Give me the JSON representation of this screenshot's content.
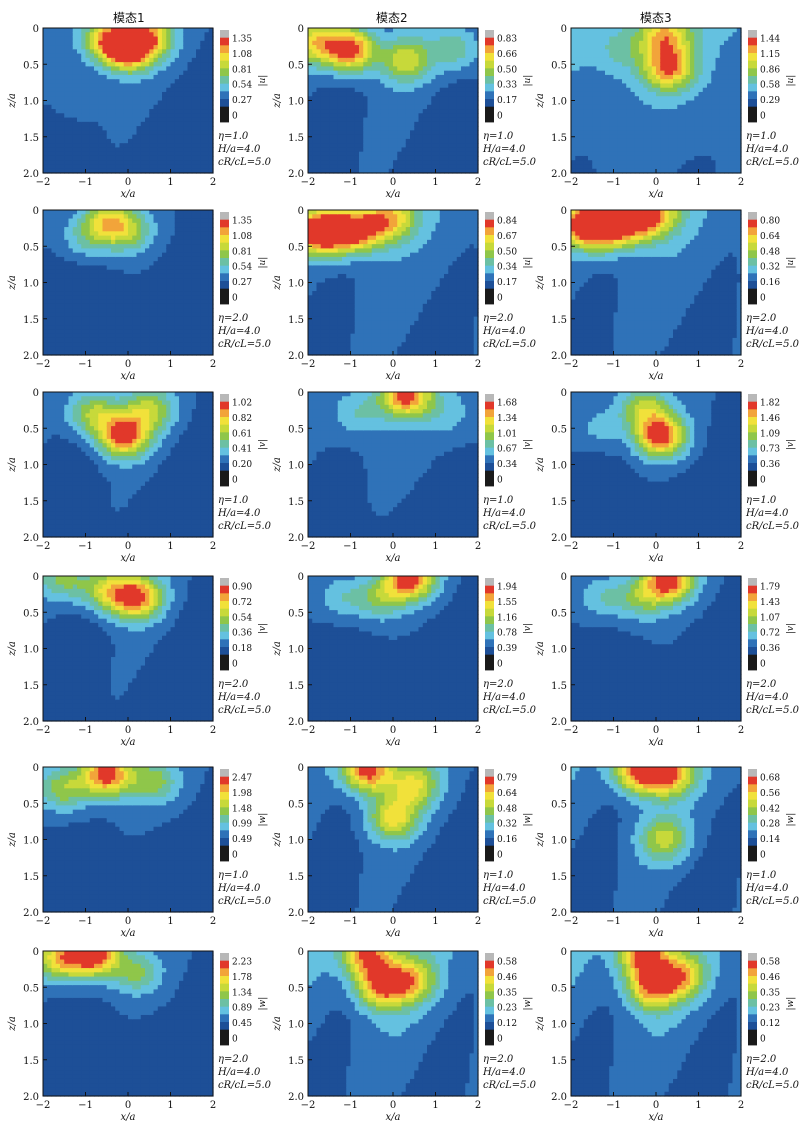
{
  "column_titles": [
    "模态1",
    "模态2",
    "模态3"
  ],
  "colors": {
    "levels": [
      "#1a1a1a",
      "#1d4f97",
      "#2f72b8",
      "#64c1e0",
      "#6cc0a4",
      "#8fc64a",
      "#c7d93a",
      "#f1e13a",
      "#f2a43a",
      "#e1382a",
      "#b8b8b8"
    ],
    "line": "#111111",
    "frame": "#111111"
  },
  "chart_data": [
    {
      "type": "contour",
      "panel": "row1-col1",
      "column": "模态1",
      "xlabel": "x/a",
      "ylabel": "z/a",
      "xlim": [
        -2,
        2
      ],
      "ylim": [
        2.0,
        0
      ],
      "x_ticks": [
        "−2",
        "−1",
        "0",
        "1",
        "2"
      ],
      "y_ticks": [
        "0",
        "0.5",
        "1.0",
        "1.5",
        "2.0"
      ],
      "colorbar_ticks": [
        "1.35",
        "1.08",
        "0.81",
        "0.54",
        "0.27",
        "0"
      ],
      "colorbar_label": "|u|",
      "params": [
        "η=1.0",
        "H/a=4.0",
        "cR/cL=5.0"
      ],
      "peaks": [
        {
          "x": 0.0,
          "z": 0.3,
          "v": 1.25
        },
        {
          "x": -0.5,
          "z": 0.15,
          "v": 1.0
        },
        {
          "x": 0.5,
          "z": 0.12,
          "v": 0.95
        },
        {
          "x": -1.2,
          "z": 1.0,
          "v": 0.3
        }
      ],
      "base": 0.18
    },
    {
      "type": "contour",
      "panel": "row1-col2",
      "column": "模态2",
      "xlabel": "x/a",
      "ylabel": "z/a",
      "xlim": [
        -2,
        2
      ],
      "ylim": [
        2.0,
        0
      ],
      "x_ticks": [
        "−2",
        "−1",
        "0",
        "1",
        "2"
      ],
      "y_ticks": [
        "0",
        "0.5",
        "1.0",
        "1.5",
        "2.0"
      ],
      "colorbar_ticks": [
        "0.83",
        "0.66",
        "0.50",
        "0.33",
        "0.17",
        "0"
      ],
      "colorbar_label": "|u|",
      "params": [
        "η=1.0",
        "H/a=4.0",
        "cR/cL=5.0"
      ],
      "peaks": [
        {
          "x": -1.0,
          "z": 0.3,
          "v": 0.82
        },
        {
          "x": -1.8,
          "z": 0.2,
          "v": 0.55
        },
        {
          "x": 0.3,
          "z": 0.45,
          "v": 0.5
        },
        {
          "x": 1.5,
          "z": 0.3,
          "v": 0.35
        }
      ],
      "base": 0.12
    },
    {
      "type": "contour",
      "panel": "row1-col3",
      "column": "模态3",
      "xlabel": "x/a",
      "ylabel": "z/a",
      "xlim": [
        -2,
        2
      ],
      "ylim": [
        2.0,
        0
      ],
      "x_ticks": [
        "−2",
        "−1",
        "0",
        "1",
        "2"
      ],
      "y_ticks": [
        "0",
        "0.5",
        "1.0",
        "1.5",
        "2.0"
      ],
      "colorbar_ticks": [
        "1.44",
        "1.15",
        "0.86",
        "0.58",
        "0.29",
        "0"
      ],
      "colorbar_label": "|u|",
      "params": [
        "η=1.0",
        "H/a=4.0",
        "cR/cL=5.0"
      ],
      "peaks": [
        {
          "x": 0.3,
          "z": 0.55,
          "v": 1.3
        },
        {
          "x": 0.2,
          "z": 0.1,
          "v": 1.1
        },
        {
          "x": -0.8,
          "z": 0.3,
          "v": 0.6
        },
        {
          "x": -1.5,
          "z": 1.2,
          "v": 0.45
        }
      ],
      "base": 0.35
    },
    {
      "type": "contour",
      "panel": "row2-col1",
      "column": "模态1",
      "xlabel": "x/a",
      "ylabel": "z/a",
      "xlim": [
        -2,
        2
      ],
      "ylim": [
        2.0,
        0
      ],
      "x_ticks": [
        "−2",
        "−1",
        "0",
        "1",
        "2"
      ],
      "y_ticks": [
        "0",
        "0.5",
        "1.0",
        "1.5",
        "2.0"
      ],
      "colorbar_ticks": [
        "1.35",
        "1.08",
        "0.81",
        "0.54",
        "0.27",
        "0"
      ],
      "colorbar_label": "|u|",
      "params": [
        "η=2.0",
        "H/a=4.0",
        "cR/cL=5.0"
      ],
      "peaks": [
        {
          "x": -0.5,
          "z": 0.15,
          "v": 0.85
        },
        {
          "x": 0.0,
          "z": 0.3,
          "v": 0.6
        },
        {
          "x": -1.0,
          "z": 0.4,
          "v": 0.45
        }
      ],
      "base": 0.12
    },
    {
      "type": "contour",
      "panel": "row2-col2",
      "column": "模态2",
      "xlabel": "x/a",
      "ylabel": "z/a",
      "xlim": [
        -2,
        2
      ],
      "ylim": [
        2.0,
        0
      ],
      "x_ticks": [
        "−2",
        "−1",
        "0",
        "1",
        "2"
      ],
      "y_ticks": [
        "0",
        "0.5",
        "1.0",
        "1.5",
        "2.0"
      ],
      "colorbar_ticks": [
        "0.84",
        "0.67",
        "0.50",
        "0.34",
        "0.17",
        "0"
      ],
      "colorbar_label": "|u|",
      "params": [
        "η=2.0",
        "H/a=4.0",
        "cR/cL=5.0"
      ],
      "peaks": [
        {
          "x": -1.8,
          "z": 0.3,
          "v": 0.8
        },
        {
          "x": -1.2,
          "z": 0.3,
          "v": 0.72
        },
        {
          "x": -0.6,
          "z": 0.25,
          "v": 0.62
        },
        {
          "x": 0.0,
          "z": 0.1,
          "v": 0.55
        }
      ],
      "base": 0.15
    },
    {
      "type": "contour",
      "panel": "row2-col3",
      "column": "模态3",
      "xlabel": "x/a",
      "ylabel": "z/a",
      "xlim": [
        -2,
        2
      ],
      "ylim": [
        2.0,
        0
      ],
      "x_ticks": [
        "−2",
        "−1",
        "0",
        "1",
        "2"
      ],
      "y_ticks": [
        "0",
        "0.5",
        "1.0",
        "1.5",
        "2.0"
      ],
      "colorbar_ticks": [
        "0.80",
        "0.64",
        "0.48",
        "0.32",
        "0.16",
        "0"
      ],
      "colorbar_label": "|u|",
      "params": [
        "η=2.0",
        "H/a=4.0",
        "cR/cL=5.0"
      ],
      "peaks": [
        {
          "x": -1.7,
          "z": 0.2,
          "v": 0.78
        },
        {
          "x": -1.1,
          "z": 0.25,
          "v": 0.7
        },
        {
          "x": -0.5,
          "z": 0.15,
          "v": 0.6
        },
        {
          "x": 0.0,
          "z": 0.05,
          "v": 0.55
        }
      ],
      "base": 0.15
    },
    {
      "type": "contour",
      "panel": "row3-col1",
      "column": "模态1",
      "xlabel": "x/a",
      "ylabel": "z/a",
      "xlim": [
        -2,
        2
      ],
      "ylim": [
        2.0,
        0
      ],
      "x_ticks": [
        "−2",
        "−1",
        "0",
        "1",
        "2"
      ],
      "y_ticks": [
        "0",
        "0.5",
        "1.0",
        "1.5",
        "2.0"
      ],
      "colorbar_ticks": [
        "1.02",
        "0.82",
        "0.61",
        "0.41",
        "0.20",
        "0"
      ],
      "colorbar_label": "|v|",
      "params": [
        "η=1.0",
        "H/a=4.0",
        "cR/cL=5.0"
      ],
      "peaks": [
        {
          "x": -0.1,
          "z": 0.6,
          "v": 0.95
        },
        {
          "x": -0.8,
          "z": 0.3,
          "v": 0.6
        },
        {
          "x": 0.5,
          "z": 0.25,
          "v": 0.55
        }
      ],
      "base": 0.12
    },
    {
      "type": "contour",
      "panel": "row3-col2",
      "column": "模态2",
      "xlabel": "x/a",
      "ylabel": "z/a",
      "xlim": [
        -2,
        2
      ],
      "ylim": [
        2.0,
        0
      ],
      "x_ticks": [
        "−2",
        "−1",
        "0",
        "1",
        "2"
      ],
      "y_ticks": [
        "0",
        "0.5",
        "1.0",
        "1.5",
        "2.0"
      ],
      "colorbar_ticks": [
        "1.68",
        "1.34",
        "1.01",
        "0.67",
        "0.34",
        "0"
      ],
      "colorbar_label": "|v|",
      "params": [
        "η=1.0",
        "H/a=4.0",
        "cR/cL=5.0"
      ],
      "peaks": [
        {
          "x": 0.3,
          "z": 0.05,
          "v": 1.6
        },
        {
          "x": -0.8,
          "z": 0.3,
          "v": 0.6
        },
        {
          "x": 1.3,
          "z": 0.3,
          "v": 0.5
        }
      ],
      "base": 0.25
    },
    {
      "type": "contour",
      "panel": "row3-col3",
      "column": "模态3",
      "xlabel": "x/a",
      "ylabel": "z/a",
      "xlim": [
        -2,
        2
      ],
      "ylim": [
        2.0,
        0
      ],
      "x_ticks": [
        "−2",
        "−1",
        "0",
        "1",
        "2"
      ],
      "y_ticks": [
        "0",
        "0.5",
        "1.0",
        "1.5",
        "2.0"
      ],
      "colorbar_ticks": [
        "1.82",
        "1.46",
        "1.09",
        "0.73",
        "0.36",
        "0"
      ],
      "colorbar_label": "|v|",
      "params": [
        "η=1.0",
        "H/a=4.0",
        "cR/cL=5.0"
      ],
      "peaks": [
        {
          "x": 0.1,
          "z": 0.6,
          "v": 1.75
        },
        {
          "x": -0.3,
          "z": 0.2,
          "v": 1.0
        },
        {
          "x": -1.3,
          "z": 0.5,
          "v": 0.5
        }
      ],
      "base": 0.2
    },
    {
      "type": "contour",
      "panel": "row4-col1",
      "column": "模态1",
      "xlabel": "x/a",
      "ylabel": "z/a",
      "xlim": [
        -2,
        2
      ],
      "ylim": [
        2.0,
        0
      ],
      "x_ticks": [
        "−2",
        "−1",
        "0",
        "1",
        "2"
      ],
      "y_ticks": [
        "0",
        "0.5",
        "1.0",
        "1.5",
        "2.0"
      ],
      "colorbar_ticks": [
        "0.90",
        "0.72",
        "0.54",
        "0.36",
        "0.18",
        "0"
      ],
      "colorbar_label": "|v|",
      "params": [
        "η=2.0",
        "H/a=4.0",
        "cR/cL=5.0"
      ],
      "peaks": [
        {
          "x": 0.2,
          "z": 0.3,
          "v": 0.8
        },
        {
          "x": -0.5,
          "z": 0.2,
          "v": 0.55
        },
        {
          "x": -1.5,
          "z": 0.05,
          "v": 0.4
        }
      ],
      "base": 0.1
    },
    {
      "type": "contour",
      "panel": "row4-col2",
      "column": "模态2",
      "xlabel": "x/a",
      "ylabel": "z/a",
      "xlim": [
        -2,
        2
      ],
      "ylim": [
        2.0,
        0
      ],
      "x_ticks": [
        "−2",
        "−1",
        "0",
        "1",
        "2"
      ],
      "y_ticks": [
        "0",
        "0.5",
        "1.0",
        "1.5",
        "2.0"
      ],
      "colorbar_ticks": [
        "1.94",
        "1.55",
        "1.16",
        "0.78",
        "0.39",
        "0"
      ],
      "colorbar_label": "|v|",
      "params": [
        "η=2.0",
        "H/a=4.0",
        "cR/cL=5.0"
      ],
      "peaks": [
        {
          "x": 0.4,
          "z": 0.02,
          "v": 1.9
        },
        {
          "x": -0.3,
          "z": 0.3,
          "v": 0.9
        },
        {
          "x": -1.2,
          "z": 0.3,
          "v": 0.6
        }
      ],
      "base": 0.2
    },
    {
      "type": "contour",
      "panel": "row4-col3",
      "column": "模态3",
      "xlabel": "x/a",
      "ylabel": "z/a",
      "xlim": [
        -2,
        2
      ],
      "ylim": [
        2.0,
        0
      ],
      "x_ticks": [
        "−2",
        "−1",
        "0",
        "1",
        "2"
      ],
      "y_ticks": [
        "0",
        "0.5",
        "1.0",
        "1.5",
        "2.0"
      ],
      "colorbar_ticks": [
        "1.79",
        "1.43",
        "1.07",
        "0.72",
        "0.36",
        "0"
      ],
      "colorbar_label": "|v|",
      "params": [
        "η=2.0",
        "H/a=4.0",
        "cR/cL=5.0"
      ],
      "peaks": [
        {
          "x": 0.3,
          "z": 0.05,
          "v": 1.7
        },
        {
          "x": -0.3,
          "z": 0.3,
          "v": 0.8
        },
        {
          "x": -1.2,
          "z": 0.3,
          "v": 0.6
        }
      ],
      "base": 0.2
    },
    {
      "type": "contour",
      "panel": "row5-col1",
      "column": "模态1",
      "xlabel": "x/a",
      "ylabel": "z/a",
      "xlim": [
        -2,
        2
      ],
      "ylim": [
        2.0,
        0
      ],
      "x_ticks": [
        "−2",
        "−1",
        "0",
        "1",
        "2"
      ],
      "y_ticks": [
        "0",
        "0.5",
        "1.0",
        "1.5",
        "2.0"
      ],
      "colorbar_ticks": [
        "2.47",
        "1.98",
        "1.48",
        "0.99",
        "0.49",
        "0"
      ],
      "colorbar_label": "|w|",
      "params": [
        "η=1.0",
        "H/a=4.0",
        "cR/cL=5.0"
      ],
      "peaks": [
        {
          "x": -0.5,
          "z": 0.1,
          "v": 2.4
        },
        {
          "x": -1.5,
          "z": 0.3,
          "v": 1.3
        },
        {
          "x": 0.6,
          "z": 0.2,
          "v": 1.2
        }
      ],
      "base": 0.3
    },
    {
      "type": "contour",
      "panel": "row5-col2",
      "column": "模态2",
      "xlabel": "x/a",
      "ylabel": "z/a",
      "xlim": [
        -2,
        2
      ],
      "ylim": [
        2.0,
        0
      ],
      "x_ticks": [
        "−2",
        "−1",
        "0",
        "1",
        "2"
      ],
      "y_ticks": [
        "0",
        "0.5",
        "1.0",
        "1.5",
        "2.0"
      ],
      "colorbar_ticks": [
        "0.79",
        "0.64",
        "0.48",
        "0.32",
        "0.16",
        "0"
      ],
      "colorbar_label": "|w|",
      "params": [
        "η=1.0",
        "H/a=4.0",
        "cR/cL=5.0"
      ],
      "peaks": [
        {
          "x": -0.6,
          "z": 0.05,
          "v": 0.78
        },
        {
          "x": 0.0,
          "z": 0.7,
          "v": 0.55
        },
        {
          "x": 0.5,
          "z": 0.25,
          "v": 0.5
        }
      ],
      "base": 0.12
    },
    {
      "type": "contour",
      "panel": "row5-col3",
      "column": "模态3",
      "xlabel": "x/a",
      "ylabel": "z/a",
      "xlim": [
        -2,
        2
      ],
      "ylim": [
        2.0,
        0
      ],
      "x_ticks": [
        "−2",
        "−1",
        "0",
        "1",
        "2"
      ],
      "y_ticks": [
        "0",
        "0.5",
        "1.0",
        "1.5",
        "2.0"
      ],
      "colorbar_ticks": [
        "0.68",
        "0.56",
        "0.42",
        "0.28",
        "0.14",
        "0"
      ],
      "colorbar_label": "|w|",
      "params": [
        "η=1.0",
        "H/a=4.0",
        "cR/cL=5.0"
      ],
      "peaks": [
        {
          "x": -0.4,
          "z": 0.05,
          "v": 0.66
        },
        {
          "x": 0.3,
          "z": 0.1,
          "v": 0.55
        },
        {
          "x": 0.2,
          "z": 1.0,
          "v": 0.4
        }
      ],
      "base": 0.12
    },
    {
      "type": "contour",
      "panel": "row6-col1",
      "column": "模态1",
      "xlabel": "x/a",
      "ylabel": "z/a",
      "xlim": [
        -2,
        2
      ],
      "ylim": [
        2.0,
        0
      ],
      "x_ticks": [
        "−2",
        "−1",
        "0",
        "1",
        "2"
      ],
      "y_ticks": [
        "0",
        "0.5",
        "1.0",
        "1.5",
        "2.0"
      ],
      "colorbar_ticks": [
        "2.23",
        "1.78",
        "1.34",
        "0.89",
        "0.45",
        "0"
      ],
      "colorbar_label": "|w|",
      "params": [
        "η=2.0",
        "H/a=4.0",
        "cR/cL=5.0"
      ],
      "peaks": [
        {
          "x": -0.8,
          "z": 0.05,
          "v": 2.2
        },
        {
          "x": -1.6,
          "z": 0.1,
          "v": 1.6
        },
        {
          "x": 0.2,
          "z": 0.3,
          "v": 1.0
        }
      ],
      "base": 0.25
    },
    {
      "type": "contour",
      "panel": "row6-col2",
      "column": "模态2",
      "xlabel": "x/a",
      "ylabel": "z/a",
      "xlim": [
        -2,
        2
      ],
      "ylim": [
        2.0,
        0
      ],
      "x_ticks": [
        "−2",
        "−1",
        "0",
        "1",
        "2"
      ],
      "y_ticks": [
        "0",
        "0.5",
        "1.0",
        "1.5",
        "2.0"
      ],
      "colorbar_ticks": [
        "0.58",
        "0.46",
        "0.35",
        "0.23",
        "0.12",
        "0"
      ],
      "colorbar_label": "|w|",
      "params": [
        "η=2.0",
        "H/a=4.0",
        "cR/cL=5.0"
      ],
      "peaks": [
        {
          "x": -0.6,
          "z": 0.05,
          "v": 0.56
        },
        {
          "x": -0.3,
          "z": 0.5,
          "v": 0.5
        },
        {
          "x": 0.4,
          "z": 0.4,
          "v": 0.42
        }
      ],
      "base": 0.12
    },
    {
      "type": "contour",
      "panel": "row6-col3",
      "column": "模态3",
      "xlabel": "x/a",
      "ylabel": "z/a",
      "xlim": [
        -2,
        2
      ],
      "ylim": [
        2.0,
        0
      ],
      "x_ticks": [
        "−2",
        "−1",
        "0",
        "1",
        "2"
      ],
      "y_ticks": [
        "0",
        "0.5",
        "1.0",
        "1.5",
        "2.0"
      ],
      "colorbar_ticks": [
        "0.58",
        "0.46",
        "0.35",
        "0.23",
        "0.12",
        "0"
      ],
      "colorbar_label": "|w|",
      "params": [
        "η=2.0",
        "H/a=4.0",
        "cR/cL=5.0"
      ],
      "peaks": [
        {
          "x": -0.3,
          "z": 0.05,
          "v": 0.56
        },
        {
          "x": -0.1,
          "z": 0.5,
          "v": 0.5
        },
        {
          "x": 0.6,
          "z": 0.35,
          "v": 0.42
        }
      ],
      "base": 0.12
    }
  ]
}
